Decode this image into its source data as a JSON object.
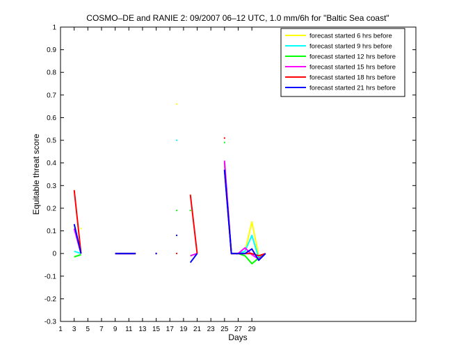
{
  "chart_data": {
    "type": "line",
    "title": "COSMO–DE and RANIE 2: 09/2007 06–12 UTC, 1.0 mm/6h for \"Baltic Sea coast\"",
    "xlabel": "Days",
    "ylabel": "Equitable threat score",
    "xlim": [
      1,
      53
    ],
    "ylim": [
      -0.3,
      1
    ],
    "xticks": [
      1,
      3,
      5,
      7,
      9,
      11,
      13,
      15,
      17,
      19,
      21,
      23,
      25,
      27,
      29
    ],
    "yticks": [
      -0.3,
      -0.2,
      -0.1,
      0,
      0.1,
      0.2,
      0.3,
      0.4,
      0.5,
      0.6,
      0.7,
      0.8,
      0.9,
      1
    ],
    "ytick_labels": [
      "-0.3",
      "-0.2",
      "-0.1",
      "0",
      "0.1",
      "0.2",
      "0.3",
      "0.4",
      "0.5",
      "0.6",
      "0.7",
      "0.8",
      "0.9",
      "1"
    ],
    "legend_position": "top-right",
    "series": [
      {
        "name": "forecast started 6 hrs before",
        "color": "#ffff00",
        "segments": [
          [
            [
              3,
              0.13
            ],
            [
              4,
              0.0
            ]
          ],
          [
            [
              9,
              0.0
            ],
            [
              12,
              0.0
            ]
          ],
          [
            [
              20,
              -0.01
            ],
            [
              21,
              0.0
            ]
          ],
          [
            [
              25,
              0.4
            ],
            [
              26,
              0.0
            ],
            [
              27,
              0.0
            ],
            [
              28,
              0.01
            ],
            [
              29,
              0.14
            ],
            [
              30,
              -0.01
            ],
            [
              31,
              0.0
            ]
          ]
        ],
        "points": [
          [
            4,
            0.11
          ],
          [
            18,
            0.66
          ],
          [
            15,
            0.0
          ]
        ]
      },
      {
        "name": "forecast started 9 hrs before",
        "color": "#00ffff",
        "segments": [
          [
            [
              3,
              0.01
            ],
            [
              4,
              0.0
            ]
          ],
          [
            [
              9,
              0.0
            ],
            [
              12,
              0.0
            ]
          ],
          [
            [
              20,
              -0.01
            ],
            [
              21,
              0.0
            ]
          ],
          [
            [
              25,
              0.4
            ],
            [
              26,
              0.0
            ],
            [
              27,
              0.0
            ],
            [
              28,
              0.01
            ],
            [
              29,
              0.08
            ],
            [
              30,
              -0.02
            ],
            [
              31,
              0.0
            ]
          ]
        ],
        "points": [
          [
            18,
            0.5
          ],
          [
            15,
            0.0
          ]
        ]
      },
      {
        "name": "forecast started 12 hrs before",
        "color": "#00ff00",
        "segments": [
          [
            [
              3,
              -0.015
            ],
            [
              4,
              -0.005
            ]
          ],
          [
            [
              9,
              0.0
            ],
            [
              12,
              0.0
            ]
          ],
          [
            [
              20,
              -0.01
            ],
            [
              21,
              0.0
            ]
          ],
          [
            [
              25,
              0.4
            ],
            [
              26,
              0.0
            ],
            [
              27,
              0.0
            ],
            [
              28,
              -0.01
            ],
            [
              29,
              -0.045
            ],
            [
              30,
              -0.02
            ],
            [
              31,
              0.0
            ]
          ]
        ],
        "points": [
          [
            18,
            0.19
          ],
          [
            20,
            0.19
          ],
          [
            25,
            0.49
          ],
          [
            15,
            0.0
          ]
        ]
      },
      {
        "name": "forecast started 15 hrs before",
        "color": "#ff00ff",
        "segments": [
          [
            [
              3,
              0.11
            ],
            [
              4,
              0.0
            ]
          ],
          [
            [
              9,
              0.0
            ],
            [
              12,
              0.0
            ]
          ],
          [
            [
              20,
              -0.01
            ],
            [
              21,
              0.0
            ]
          ],
          [
            [
              25,
              0.41
            ],
            [
              26,
              0.0
            ],
            [
              27,
              0.0
            ],
            [
              28,
              0.025
            ],
            [
              29,
              -0.005
            ],
            [
              30,
              -0.025
            ],
            [
              31,
              0.0
            ]
          ]
        ],
        "points": [
          [
            15,
            0.0
          ]
        ]
      },
      {
        "name": "forecast started 18 hrs before",
        "color": "#ff0000",
        "segments": [
          [
            [
              3,
              0.28
            ],
            [
              4,
              0.0
            ]
          ],
          [
            [
              9,
              0.0
            ],
            [
              12,
              0.0
            ]
          ],
          [
            [
              20,
              0.26
            ],
            [
              21,
              0.0
            ]
          ],
          [
            [
              25,
              0.37
            ],
            [
              26,
              0.0
            ],
            [
              27,
              0.0
            ],
            [
              28,
              0.0
            ],
            [
              29,
              0.0
            ],
            [
              30,
              -0.01
            ],
            [
              31,
              0.0
            ]
          ]
        ],
        "points": [
          [
            25,
            0.51
          ],
          [
            18,
            0.0
          ],
          [
            15,
            0.0
          ]
        ]
      },
      {
        "name": "forecast started 21 hrs before",
        "color": "#0000ff",
        "segments": [
          [
            [
              3,
              0.13
            ],
            [
              4,
              0.0
            ]
          ],
          [
            [
              9,
              0.0
            ],
            [
              12,
              0.0
            ]
          ],
          [
            [
              20,
              -0.04
            ],
            [
              21,
              0.0
            ]
          ],
          [
            [
              25,
              0.37
            ],
            [
              26,
              0.0
            ],
            [
              27,
              0.0
            ],
            [
              28,
              0.0
            ],
            [
              29,
              0.02
            ],
            [
              30,
              -0.03
            ],
            [
              31,
              0.0
            ]
          ]
        ],
        "points": [
          [
            18,
            0.08
          ],
          [
            15,
            0.0
          ]
        ]
      }
    ]
  }
}
